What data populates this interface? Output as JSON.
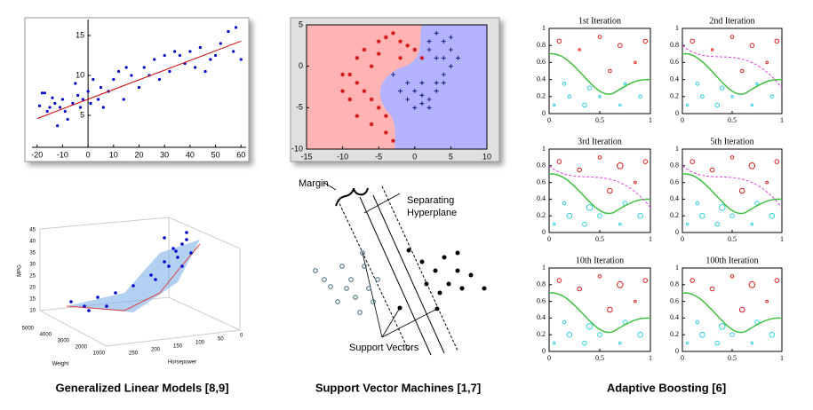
{
  "chart_data": [
    {
      "type": "scatter",
      "xlim": [
        -22,
        62
      ],
      "ylim": [
        1,
        17
      ],
      "xticks": [
        -20,
        -10,
        0,
        10,
        20,
        30,
        40,
        50,
        60
      ],
      "yticks": [
        5,
        10,
        15
      ],
      "series": [
        {
          "color": "#0000cc",
          "marker": "dot",
          "x": [
            -19,
            -18,
            -17,
            -16,
            -15,
            -14,
            -13,
            -12,
            -11,
            -10,
            -9,
            -8,
            -6,
            -5,
            -4,
            -3,
            -2,
            0,
            1,
            2,
            4,
            5,
            6,
            8,
            10,
            12,
            14,
            15,
            17,
            20,
            22,
            24,
            26,
            28,
            30,
            32,
            34,
            36,
            38,
            40,
            42,
            44,
            46,
            48,
            50,
            52,
            55,
            57,
            58,
            60
          ],
          "values": [
            6.2,
            7.8,
            7.8,
            5.5,
            6.0,
            7.2,
            6.5,
            3.7,
            6.0,
            7.0,
            5.5,
            4.5,
            6.5,
            9.0,
            7.5,
            6.0,
            7.0,
            8.0,
            6.5,
            9.5,
            7.0,
            8.5,
            6.0,
            8.0,
            9.5,
            10.5,
            7.0,
            11.0,
            10.0,
            8.5,
            11.0,
            10.0,
            12.0,
            9.5,
            12.5,
            10.5,
            13.0,
            12.5,
            11.5,
            13.0,
            11.0,
            13.5,
            10.5,
            12.0,
            12.5,
            14.0,
            15.5,
            13.0,
            16.0,
            12.0
          ]
        },
        {
          "color": "#cc0000",
          "marker": "line",
          "x": [
            -20,
            60
          ],
          "values": [
            4.6,
            14.3
          ]
        }
      ]
    },
    {
      "type": "scatter",
      "xlim": [
        -15,
        10
      ],
      "ylim": [
        -10,
        5
      ],
      "xticks": [
        -15,
        -10,
        -5,
        0,
        5,
        10
      ],
      "yticks": [
        -10,
        -5,
        0,
        5
      ],
      "series": [
        {
          "color": "#cc0000",
          "marker": "star",
          "x": [
            -10,
            -9,
            -8,
            -7,
            -5,
            -4,
            -3,
            -2,
            -1,
            0,
            1,
            -9,
            -8,
            -6,
            -4,
            -3,
            -7,
            -6,
            -5,
            -2,
            -8,
            -10,
            -5,
            -6,
            -4
          ],
          "values": [
            -3,
            -1,
            1,
            2,
            3,
            3.5,
            4,
            3,
            2.5,
            2,
            1,
            -4,
            -6,
            -7,
            -8,
            -9,
            -3,
            0,
            1.5,
            1,
            -2,
            -1,
            -5,
            -4,
            -6
          ]
        },
        {
          "color": "#000066",
          "marker": "plus",
          "x": [
            -3,
            -2,
            -1,
            0,
            1,
            2,
            3,
            4,
            4,
            5,
            4,
            3,
            2,
            1,
            0,
            -1,
            5,
            6,
            2,
            3,
            5,
            3,
            1,
            4,
            2
          ],
          "values": [
            -1,
            -3,
            -4,
            -5,
            -4.5,
            -4,
            -3,
            -1,
            1,
            2,
            3,
            4,
            3,
            -2,
            -3,
            -2,
            0,
            1,
            -5,
            -2,
            3.5,
            1,
            -3.5,
            -2,
            2
          ]
        }
      ]
    },
    {
      "type": "scatter3d",
      "zticks": [
        10,
        15,
        20,
        25,
        30,
        35,
        40,
        45
      ],
      "weight_ticks": [
        5000,
        4000,
        3000,
        2000,
        1000
      ],
      "hp_ticks": [
        250,
        200,
        150,
        100,
        50,
        0
      ],
      "zlabel": "MPG",
      "xlabel": "Weight",
      "ylabel": "Horsepower"
    },
    {
      "type": "diagram",
      "margin": "Margin",
      "hyperplane": [
        "Separating",
        "Hyperplane"
      ],
      "support": "Support Vectors"
    },
    {
      "type": "boost",
      "title": "1st Iteration",
      "xticks": [
        0,
        0.5,
        1
      ],
      "yticks": [
        0,
        0.2,
        0.4,
        0.6,
        0.8,
        1
      ]
    },
    {
      "type": "boost",
      "title": "2nd Iteration",
      "xticks": [
        0,
        0.5,
        1
      ],
      "yticks": [
        0,
        0.2,
        0.4,
        0.6,
        0.8,
        1
      ]
    },
    {
      "type": "boost",
      "title": "3rd Iteration",
      "xticks": [
        0,
        0.5,
        1
      ],
      "yticks": [
        0,
        0.2,
        0.4,
        0.6,
        0.8,
        1
      ]
    },
    {
      "type": "boost",
      "title": "5th Iteration",
      "xticks": [
        0,
        0.5,
        1
      ],
      "yticks": [
        0,
        0.2,
        0.4,
        0.6,
        0.8,
        1
      ]
    },
    {
      "type": "boost",
      "title": "10th Iteration",
      "xticks": [
        0,
        0.5,
        1
      ],
      "yticks": [
        0,
        0.2,
        0.4,
        0.6,
        0.8,
        1
      ]
    },
    {
      "type": "boost",
      "title": "100th Iteration",
      "xticks": [
        0,
        0.5,
        1
      ],
      "yticks": [
        0,
        0.2,
        0.4,
        0.6,
        0.8,
        1
      ]
    }
  ],
  "captions": [
    "Generalized Linear Models [8,9]",
    "Support Vector Machines [1,7]",
    "Adaptive Boosting [6]"
  ]
}
